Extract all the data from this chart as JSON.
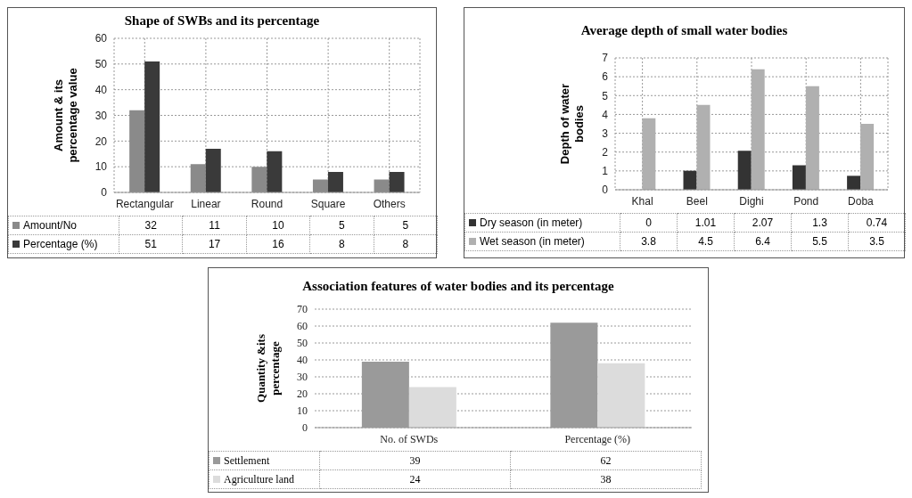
{
  "chart_data": [
    {
      "type": "bar",
      "title": "Shape of SWBs and its percentage",
      "ylabel": "Amount & its percentage value",
      "categories": [
        "Rectangular",
        "Linear",
        "Round",
        "Square",
        "Others"
      ],
      "series": [
        {
          "name": "Amount/No",
          "color": "#8a8a8a",
          "values": [
            32,
            11,
            10,
            5,
            5
          ]
        },
        {
          "name": "Percentage (%)",
          "color": "#3a3a3a",
          "values": [
            51,
            17,
            16,
            8,
            8
          ]
        }
      ],
      "ylim": [
        0,
        60
      ],
      "yticks": [
        0,
        10,
        20,
        30,
        40,
        50,
        60
      ],
      "grid": true,
      "legend": "bottom",
      "data_labels": true
    },
    {
      "type": "bar",
      "title": "Average depth of small water bodies",
      "ylabel": "Depth of water bodies",
      "categories": [
        "Khal",
        "Beel",
        "Dighi",
        "Pond",
        "Doba"
      ],
      "series": [
        {
          "name": "Dry season (in meter)",
          "color": "#333333",
          "values": [
            0,
            1.01,
            2.07,
            1.3,
            0.74
          ]
        },
        {
          "name": "Wet season (in meter)",
          "color": "#b0b0b0",
          "values": [
            3.8,
            4.5,
            6.4,
            5.5,
            3.5
          ]
        }
      ],
      "ylim": [
        0,
        7
      ],
      "yticks": [
        0,
        1,
        2,
        3,
        4,
        5,
        6,
        7
      ],
      "grid": true,
      "legend": "bottom",
      "data_labels": true
    },
    {
      "type": "bar",
      "title": "Association features of water bodies and its percentage",
      "ylabel": "Quantity &its percentage",
      "categories": [
        "No. of SWDs",
        "Percentage (%)"
      ],
      "series": [
        {
          "name": "Settlement",
          "color": "#9a9a9a",
          "values": [
            39,
            62
          ]
        },
        {
          "name": "Agriculture land",
          "color": "#dcdcdc",
          "values": [
            24,
            38
          ]
        }
      ],
      "ylim": [
        0,
        70
      ],
      "yticks": [
        0,
        10,
        20,
        30,
        40,
        50,
        60,
        70
      ],
      "grid": "y",
      "legend": "bottom",
      "data_labels": true
    }
  ]
}
